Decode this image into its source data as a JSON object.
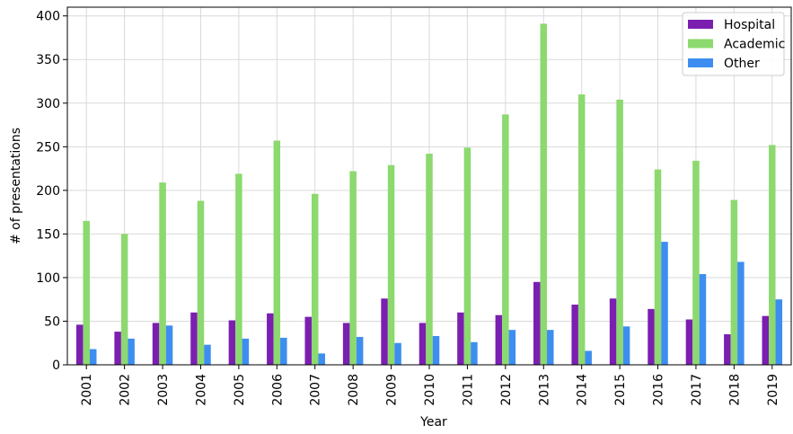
{
  "chart_data": {
    "type": "bar",
    "title": "",
    "xlabel": "Year",
    "ylabel": "# of presentations",
    "ylim": [
      0,
      410
    ],
    "yticks": [
      0,
      50,
      100,
      150,
      200,
      250,
      300,
      350,
      400
    ],
    "grid": true,
    "legend_position": "top-right",
    "categories": [
      "2001",
      "2002",
      "2003",
      "2004",
      "2005",
      "2006",
      "2007",
      "2008",
      "2009",
      "2010",
      "2011",
      "2012",
      "2013",
      "2014",
      "2015",
      "2016",
      "2017",
      "2018",
      "2019"
    ],
    "series": [
      {
        "name": "Hospital",
        "color": "#7b1fb0",
        "values": [
          46,
          38,
          48,
          60,
          51,
          59,
          55,
          48,
          76,
          48,
          60,
          57,
          95,
          69,
          76,
          64,
          52,
          35,
          56
        ]
      },
      {
        "name": "Academic",
        "color": "#8cd96f",
        "values": [
          165,
          150,
          209,
          188,
          219,
          257,
          196,
          222,
          229,
          242,
          249,
          287,
          391,
          310,
          304,
          224,
          234,
          189,
          252
        ]
      },
      {
        "name": "Other",
        "color": "#3d8ef0",
        "values": [
          18,
          30,
          45,
          23,
          30,
          31,
          13,
          32,
          25,
          33,
          26,
          40,
          40,
          16,
          44,
          141,
          104,
          118,
          75
        ]
      }
    ]
  }
}
